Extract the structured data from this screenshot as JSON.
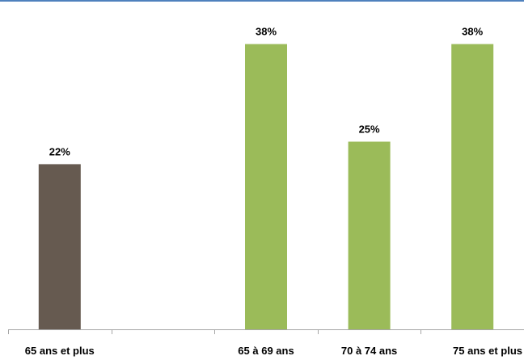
{
  "chart_data": {
    "type": "bar",
    "categories": [
      "65 ans et plus",
      "",
      "65 à 69 ans",
      "70 à 74 ans",
      "75 ans et plus"
    ],
    "values": [
      22,
      null,
      38,
      25,
      38
    ],
    "value_labels": [
      "22%",
      "",
      "38%",
      "25%",
      "38%"
    ],
    "bar_colors": [
      "#665a50",
      "#9bbb59",
      "#9bbb59",
      "#9bbb59",
      "#9bbb59"
    ],
    "unit": "%",
    "ylim": [
      0,
      40
    ],
    "grid": false,
    "legend": "none"
  },
  "frame": {
    "top_border_color": "#4f81bd",
    "axis_color": "#a6a6a6"
  }
}
